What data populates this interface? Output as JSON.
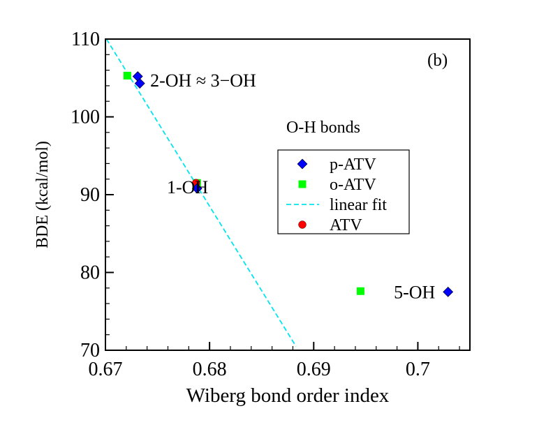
{
  "chart_data": {
    "type": "scatter",
    "panel_label": "(b)",
    "xlabel": "Wiberg bond order index",
    "ylabel": "BDE (kcal/mol)",
    "xlim": [
      0.67,
      0.705
    ],
    "ylim": [
      70,
      110
    ],
    "x_major_ticks": [
      0.67,
      0.68,
      0.69,
      0.7
    ],
    "x_tick_labels": [
      "0.67",
      "0.68",
      "0.69",
      "0.7"
    ],
    "y_major_ticks": [
      70,
      80,
      90,
      100,
      110
    ],
    "y_tick_labels": [
      "70",
      "80",
      "90",
      "100",
      "110"
    ],
    "legend_title": "O-H bonds",
    "legend_position": "center-right",
    "series": [
      {
        "name": "p-ATV",
        "marker": "diamond",
        "color": "#0000ff",
        "points": [
          {
            "x": 0.6731,
            "y": 105.2
          },
          {
            "x": 0.6733,
            "y": 104.3
          },
          {
            "x": 0.6788,
            "y": 90.8
          },
          {
            "x": 0.7029,
            "y": 77.5
          }
        ]
      },
      {
        "name": "o-ATV",
        "marker": "square",
        "color": "#00ff00",
        "points": [
          {
            "x": 0.6721,
            "y": 105.3
          },
          {
            "x": 0.6788,
            "y": 91.5
          },
          {
            "x": 0.6945,
            "y": 77.6
          }
        ]
      },
      {
        "name": "linear fit",
        "marker": "dashed-line",
        "color": "#00e5ee",
        "points": [
          {
            "x": 0.6701,
            "y": 110.0
          },
          {
            "x": 0.6883,
            "y": 70.5
          }
        ]
      },
      {
        "name": "ATV",
        "marker": "circle",
        "color": "#ff0000",
        "points": [
          {
            "x": 0.6787,
            "y": 91.5
          }
        ]
      }
    ],
    "annotations": [
      {
        "text": "2-OH ≈ 3−OH",
        "x": 0.6743,
        "y": 104.7
      },
      {
        "text": "1-OH",
        "x": 0.6759,
        "y": 91.0
      },
      {
        "text": "5-OH",
        "x": 0.6977,
        "y": 77.5
      }
    ]
  }
}
